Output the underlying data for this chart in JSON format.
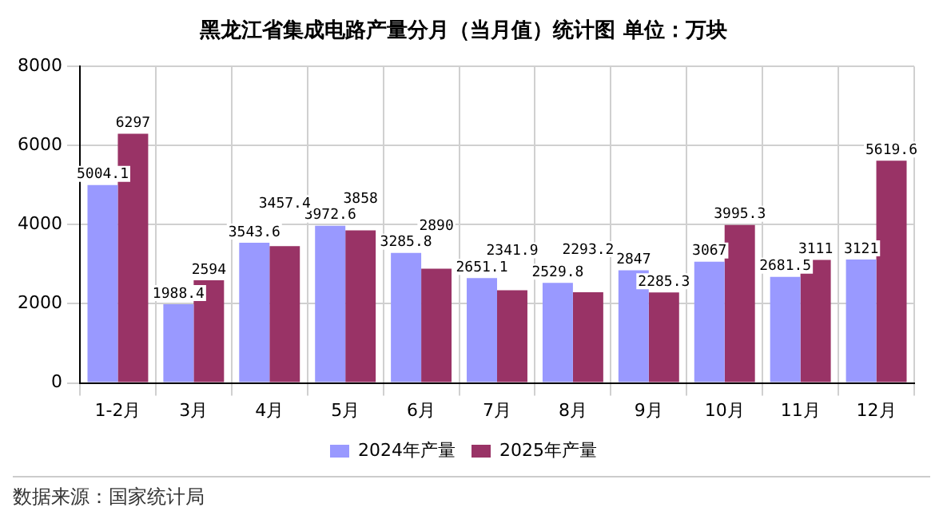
{
  "chart_data": {
    "type": "bar",
    "title": "黑龙江省集成电路产量分月（当月值）统计图 单位：万块",
    "categories": [
      "1-2月",
      "3月",
      "4月",
      "5月",
      "6月",
      "7月",
      "8月",
      "9月",
      "10月",
      "11月",
      "12月"
    ],
    "series": [
      {
        "name": "2024年产量",
        "color": "#9999ff",
        "values": [
          5004.1,
          1988.4,
          3543.6,
          3972.6,
          3285.8,
          2651.1,
          2529.8,
          2847,
          3067,
          2681.5,
          3121
        ]
      },
      {
        "name": "2025年产量",
        "color": "#993366",
        "values": [
          6297,
          2594,
          3457.4,
          3858,
          2890,
          2341.9,
          2293.2,
          2285.3,
          3995.3,
          3111,
          5619.6
        ]
      }
    ],
    "ylim": [
      0,
      8000
    ],
    "yticks": [
      0,
      2000,
      4000,
      6000,
      8000
    ],
    "grid": true,
    "legend": "bottom",
    "data_labels": true,
    "annotations": [
      "数据来源：国家统计局"
    ]
  }
}
